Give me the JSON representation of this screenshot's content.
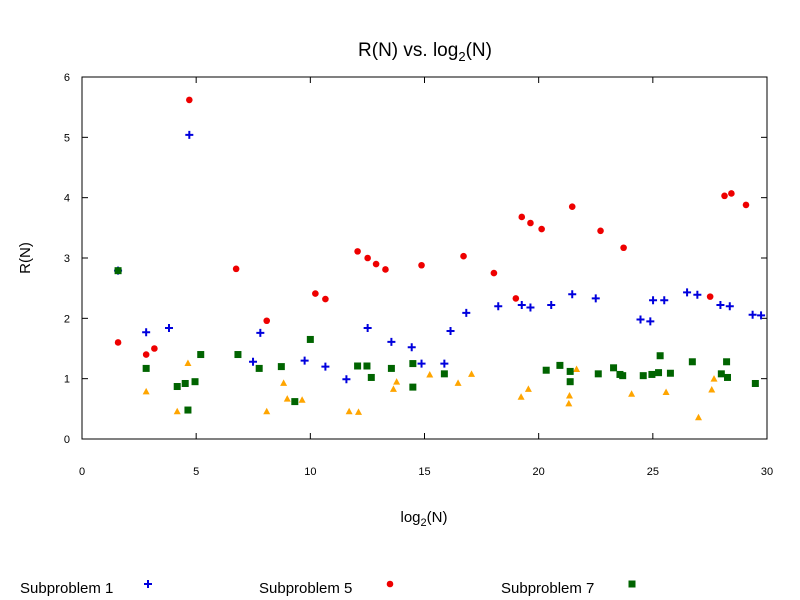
{
  "chart_data": {
    "type": "scatter",
    "title": "R(N) vs. log",
    "title_sub": "2",
    "title_end": "(N)",
    "xlabel": "log",
    "xlabel_sub": "2",
    "xlabel_end": "(N)",
    "ylabel": "R(N)",
    "xlim": [
      0,
      30
    ],
    "ylim": [
      0,
      6
    ],
    "xticks": [
      0,
      5,
      10,
      15,
      20,
      25,
      30
    ],
    "yticks": [
      0,
      1,
      2,
      3,
      4,
      5,
      6
    ],
    "grid": false,
    "legend_position": "bottom",
    "series": [
      {
        "name": "Subproblem 1",
        "marker": "plus",
        "color": "#0000dd",
        "in_legend": true,
        "points": [
          [
            1.58,
            2.79
          ],
          [
            2.81,
            1.77
          ],
          [
            3.81,
            1.84
          ],
          [
            4.7,
            5.04
          ],
          [
            7.49,
            1.28
          ],
          [
            7.81,
            1.76
          ],
          [
            9.75,
            1.3
          ],
          [
            10.66,
            1.2
          ],
          [
            11.58,
            0.99
          ],
          [
            12.51,
            1.84
          ],
          [
            13.55,
            1.61
          ],
          [
            14.44,
            1.52
          ],
          [
            14.87,
            1.25
          ],
          [
            15.87,
            1.25
          ],
          [
            16.14,
            1.79
          ],
          [
            16.83,
            2.09
          ],
          [
            18.23,
            2.2
          ],
          [
            19.26,
            2.22
          ],
          [
            19.64,
            2.18
          ],
          [
            20.55,
            2.22
          ],
          [
            21.47,
            2.4
          ],
          [
            22.5,
            2.33
          ],
          [
            24.46,
            1.98
          ],
          [
            24.89,
            1.95
          ],
          [
            25.01,
            2.3
          ],
          [
            25.5,
            2.3
          ],
          [
            26.5,
            2.43
          ],
          [
            26.95,
            2.39
          ],
          [
            27.96,
            2.22
          ],
          [
            28.37,
            2.2
          ],
          [
            29.37,
            2.06
          ],
          [
            29.74,
            2.05
          ]
        ]
      },
      {
        "name": "Subproblem 5",
        "marker": "circle",
        "color": "#ee0000",
        "in_legend": true,
        "points": [
          [
            1.58,
            1.6
          ],
          [
            2.81,
            1.4
          ],
          [
            3.17,
            1.5
          ],
          [
            4.7,
            5.62
          ],
          [
            6.75,
            2.82
          ],
          [
            8.09,
            1.96
          ],
          [
            10.22,
            2.41
          ],
          [
            10.66,
            2.32
          ],
          [
            12.07,
            3.11
          ],
          [
            12.51,
            3.0
          ],
          [
            12.88,
            2.9
          ],
          [
            13.29,
            2.81
          ],
          [
            14.87,
            2.88
          ],
          [
            16.71,
            3.03
          ],
          [
            18.04,
            2.75
          ],
          [
            19.0,
            2.33
          ],
          [
            19.26,
            3.68
          ],
          [
            19.64,
            3.58
          ],
          [
            20.13,
            3.48
          ],
          [
            21.47,
            3.85
          ],
          [
            22.71,
            3.45
          ],
          [
            23.72,
            3.17
          ],
          [
            27.51,
            2.36
          ],
          [
            28.14,
            4.03
          ],
          [
            28.44,
            4.07
          ],
          [
            29.08,
            3.88
          ]
        ]
      },
      {
        "name": "Subproblem 7",
        "marker": "square",
        "color": "#006400",
        "in_legend": true,
        "points": [
          [
            1.58,
            2.79
          ],
          [
            2.81,
            1.17
          ],
          [
            4.17,
            0.87
          ],
          [
            4.52,
            0.92
          ],
          [
            4.64,
            0.48
          ],
          [
            4.95,
            0.95
          ],
          [
            5.2,
            1.4
          ],
          [
            6.83,
            1.4
          ],
          [
            7.76,
            1.17
          ],
          [
            8.73,
            1.2
          ],
          [
            9.32,
            0.62
          ],
          [
            10.0,
            1.65
          ],
          [
            12.07,
            1.21
          ],
          [
            12.48,
            1.21
          ],
          [
            12.67,
            1.02
          ],
          [
            13.55,
            1.17
          ],
          [
            14.49,
            0.86
          ],
          [
            14.49,
            1.25
          ],
          [
            15.87,
            1.08
          ],
          [
            20.33,
            1.14
          ],
          [
            20.93,
            1.22
          ],
          [
            21.38,
            1.12
          ],
          [
            21.38,
            0.95
          ],
          [
            22.61,
            1.08
          ],
          [
            23.28,
            1.18
          ],
          [
            23.56,
            1.07
          ],
          [
            23.68,
            1.05
          ],
          [
            24.58,
            1.05
          ],
          [
            24.96,
            1.07
          ],
          [
            25.25,
            1.1
          ],
          [
            25.32,
            1.38
          ],
          [
            25.77,
            1.09
          ],
          [
            26.73,
            1.28
          ],
          [
            28.0,
            1.08
          ],
          [
            28.23,
            1.28
          ],
          [
            28.27,
            1.02
          ],
          [
            29.49,
            0.92
          ]
        ]
      },
      {
        "name": "",
        "marker": "triangle",
        "color": "#ffa500",
        "in_legend": false,
        "points": [
          [
            2.81,
            0.79
          ],
          [
            4.17,
            0.46
          ],
          [
            4.64,
            1.26
          ],
          [
            8.09,
            0.46
          ],
          [
            8.83,
            0.93
          ],
          [
            8.99,
            0.67
          ],
          [
            9.64,
            0.65
          ],
          [
            11.7,
            0.46
          ],
          [
            12.11,
            0.45
          ],
          [
            13.64,
            0.83
          ],
          [
            13.78,
            0.95
          ],
          [
            15.23,
            1.07
          ],
          [
            16.47,
            0.93
          ],
          [
            17.06,
            1.08
          ],
          [
            19.23,
            0.7
          ],
          [
            19.55,
            0.83
          ],
          [
            21.32,
            0.59
          ],
          [
            21.35,
            0.72
          ],
          [
            21.66,
            1.16
          ],
          [
            24.07,
            0.75
          ],
          [
            25.58,
            0.78
          ],
          [
            27.0,
            0.36
          ],
          [
            27.58,
            0.82
          ],
          [
            27.68,
            1.0
          ]
        ]
      }
    ]
  }
}
